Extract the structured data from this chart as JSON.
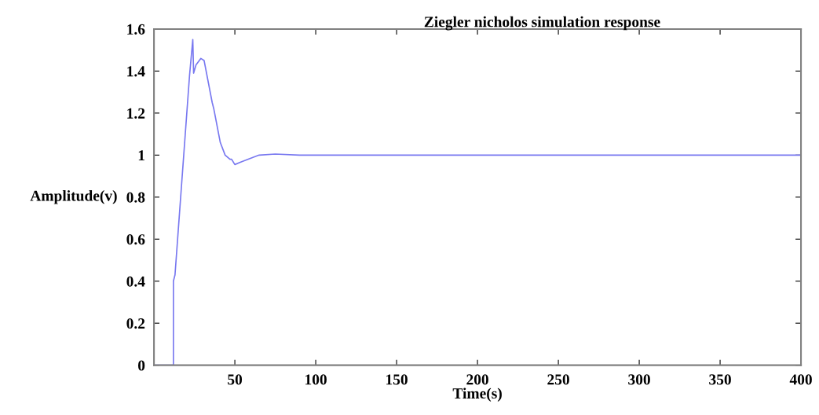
{
  "chart_data": {
    "type": "line",
    "title": "Ziegler nicholos simulation response",
    "xlabel": "Time(s)",
    "ylabel": "Amplitude(v)",
    "x": [
      0,
      12,
      12,
      13,
      22,
      24,
      24.5,
      26,
      29,
      31,
      36,
      37,
      37.5,
      41,
      44,
      47,
      48,
      50,
      53,
      58,
      65,
      75,
      90,
      150,
      200,
      250,
      300,
      350,
      400
    ],
    "series": [
      {
        "color": "#7878f0",
        "values": [
          0,
          0,
          0.4,
          0.43,
          1.38,
          1.55,
          1.39,
          1.43,
          1.46,
          1.45,
          1.25,
          1.22,
          1.2,
          1.06,
          1.0,
          0.98,
          0.98,
          0.955,
          0.965,
          0.98,
          1.0,
          1.005,
          1.0,
          1.0,
          1.0,
          1.0,
          1.0,
          1.0,
          1.0
        ]
      }
    ],
    "xlim": [
      0,
      400
    ],
    "xticks": [
      50,
      100,
      150,
      200,
      250,
      300,
      350,
      400
    ],
    "ylim": [
      0,
      1.6
    ],
    "yticks": [
      0,
      0.2,
      0.4,
      0.6,
      0.8,
      1,
      1.2,
      1.4,
      1.6
    ],
    "grid": false,
    "legend": false,
    "marker": "none",
    "line_style": "solid"
  }
}
